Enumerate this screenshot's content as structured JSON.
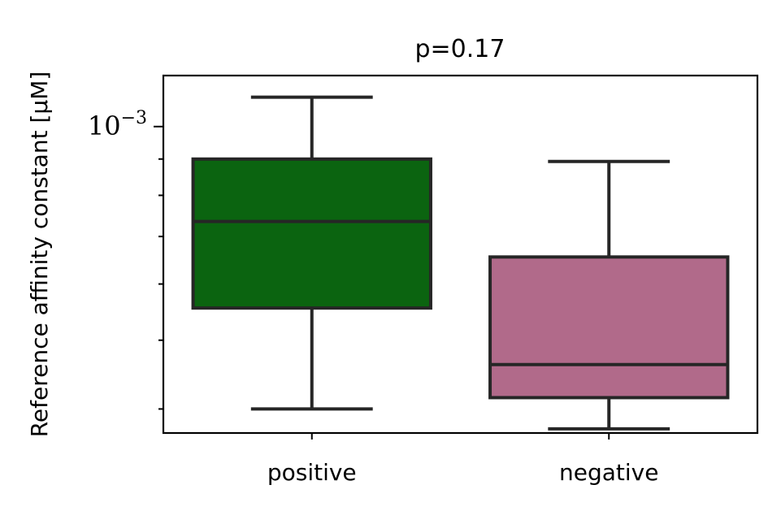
{
  "chart_data": {
    "type": "box",
    "title": "p=0.17",
    "ylabel": "Reference affinity constant [μM]",
    "xlabel": "",
    "yscale": "log",
    "ylim": [
      0.00037,
      0.00118
    ],
    "yticks": [
      {
        "value": 0.001,
        "label": "10",
        "exponent": "−3"
      }
    ],
    "grid": false,
    "categories": [
      "positive",
      "negative"
    ],
    "boxes": [
      {
        "category": "positive",
        "whisker_low": 0.0004,
        "q1": 0.000555,
        "median": 0.000735,
        "q3": 0.0009,
        "whisker_high": 0.0011,
        "color": "#0b6410"
      },
      {
        "category": "negative",
        "whisker_low": 0.000375,
        "q1": 0.000415,
        "median": 0.000462,
        "q3": 0.000655,
        "whisker_high": 0.000893,
        "color": "#b16a8a"
      }
    ]
  }
}
